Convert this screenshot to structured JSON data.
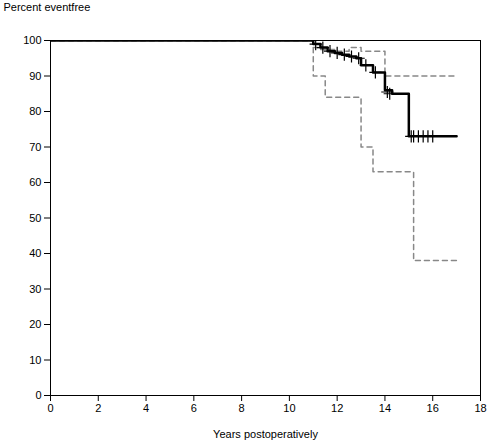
{
  "chart_data": {
    "type": "line",
    "xlabel": "Years postoperatively",
    "ylabel": "Percent eventfree",
    "xlim": [
      0,
      18
    ],
    "ylim": [
      0,
      100
    ],
    "xticks": [
      0,
      2,
      4,
      6,
      8,
      10,
      12,
      14,
      16,
      18
    ],
    "yticks": [
      0,
      10,
      20,
      30,
      40,
      50,
      60,
      70,
      80,
      90,
      100
    ],
    "grid": false,
    "series": [
      {
        "type": "step",
        "color": "#888888",
        "line_style": "dashed",
        "x": [
          0,
          11.0,
          11.0,
          11.3,
          11.3,
          12.0,
          12.0,
          12.5,
          12.5,
          13.0,
          13.0,
          14.0,
          14.0,
          15.0,
          15.0,
          17.0
        ],
        "values": [
          100,
          100,
          98,
          98,
          97.5,
          97.5,
          97,
          97,
          98,
          98,
          97,
          97,
          90,
          90,
          90,
          90
        ]
      },
      {
        "type": "step",
        "color": "#888888",
        "line_style": "dashed",
        "x": [
          0,
          11.0,
          11.0,
          11.5,
          11.5,
          12.0,
          12.0,
          13.0,
          13.0,
          13.5,
          13.5,
          14.0,
          14.0,
          15.2,
          15.2,
          15.5,
          15.5,
          17.0
        ],
        "values": [
          100,
          100,
          90,
          90,
          84,
          84,
          84,
          84,
          70,
          70,
          63,
          63,
          63,
          63,
          38,
          38,
          38,
          38
        ]
      },
      {
        "type": "step",
        "color": "#000000",
        "line_style": "solid",
        "x": [
          0,
          11.0,
          11.0,
          11.3,
          11.3,
          11.6,
          11.6,
          11.9,
          11.9,
          12.2,
          12.2,
          12.5,
          12.5,
          12.8,
          12.8,
          13.0,
          13.0,
          13.5,
          13.5,
          14.0,
          14.0,
          14.3,
          14.3,
          15.0,
          15.0,
          15.3,
          15.3,
          17.0
        ],
        "values": [
          100,
          100,
          99,
          99,
          98,
          98,
          97,
          97,
          96.5,
          96.5,
          96,
          96,
          95.5,
          95.5,
          95,
          95,
          93,
          93,
          91,
          91,
          86,
          86,
          85,
          85,
          73,
          73,
          73,
          73
        ]
      },
      {
        "type": "scatter",
        "color": "#000000",
        "marker": "plus",
        "x": [
          11.1,
          11.4,
          11.7,
          12.0,
          12.3,
          12.6,
          12.9,
          13.2,
          13.6,
          14.1,
          14.2,
          15.1,
          15.2,
          15.4,
          15.6,
          15.8,
          16.0
        ],
        "values": [
          99,
          98,
          97,
          96.5,
          96,
          95.5,
          95,
          93,
          91,
          85.5,
          85,
          73,
          73,
          73,
          73,
          73,
          73
        ]
      }
    ]
  }
}
